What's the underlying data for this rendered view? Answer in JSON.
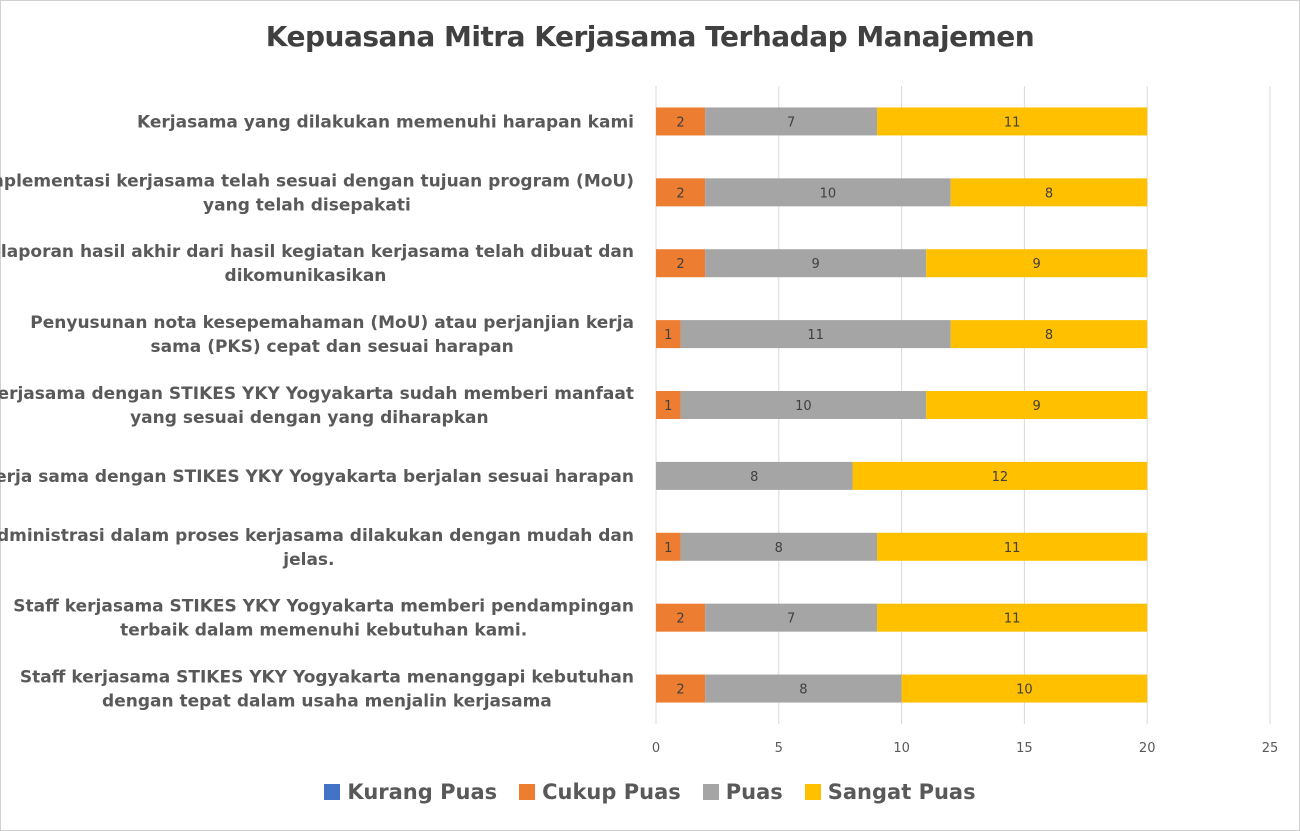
{
  "chart_data": {
    "type": "bar",
    "orientation": "horizontal",
    "stacked": true,
    "title": "Kepuasana Mitra Kerjasama Terhadap Manajemen",
    "categories": [
      [
        "Kerjasama yang dilakukan memenuhi harapan kami"
      ],
      [
        "Implementasi kerjasama telah sesuai dengan tujuan program (MoU)",
        "yang telah disepakati"
      ],
      [
        "Pelaporan hasil akhir dari hasil kegiatan kerjasama telah dibuat dan",
        "dikomunikasikan"
      ],
      [
        "Penyusunan nota kesepemahaman (MoU) atau perjanjian kerja",
        "sama (PKS) cepat dan sesuai harapan"
      ],
      [
        "Kerjasama dengan STIKES YKY Yogyakarta  sudah memberi manfaat",
        "yang sesuai dengan yang diharapkan"
      ],
      [
        "Kerja sama dengan STIKES YKY Yogyakarta  berjalan sesuai harapan"
      ],
      [
        "Administrasi dalam proses kerjasama dilakukan dengan mudah dan",
        "jelas."
      ],
      [
        "Staff kerjasama STIKES YKY Yogyakarta  memberi pendampingan",
        "terbaik dalam memenuhi kebutuhan kami."
      ],
      [
        "Staff kerjasama STIKES YKY Yogyakarta  menanggapi kebutuhan",
        "dengan tepat dalam usaha menjalin kerjasama"
      ]
    ],
    "series": [
      {
        "name": "Kurang Puas",
        "color": "#4472c4",
        "values": [
          0,
          0,
          0,
          0,
          0,
          0,
          0,
          0,
          0
        ]
      },
      {
        "name": "Cukup Puas",
        "color": "#ed7d31",
        "values": [
          2,
          2,
          2,
          1,
          1,
          0,
          1,
          2,
          2
        ]
      },
      {
        "name": "Puas",
        "color": "#a5a5a5",
        "values": [
          7,
          10,
          9,
          11,
          10,
          8,
          8,
          7,
          8
        ]
      },
      {
        "name": "Sangat Puas",
        "color": "#ffc000",
        "values": [
          11,
          8,
          9,
          8,
          9,
          12,
          11,
          11,
          10
        ]
      }
    ],
    "xlim": [
      0,
      25
    ],
    "xticks": [
      0,
      5,
      10,
      15,
      20,
      25
    ],
    "grid": true,
    "legend": "bottom"
  }
}
